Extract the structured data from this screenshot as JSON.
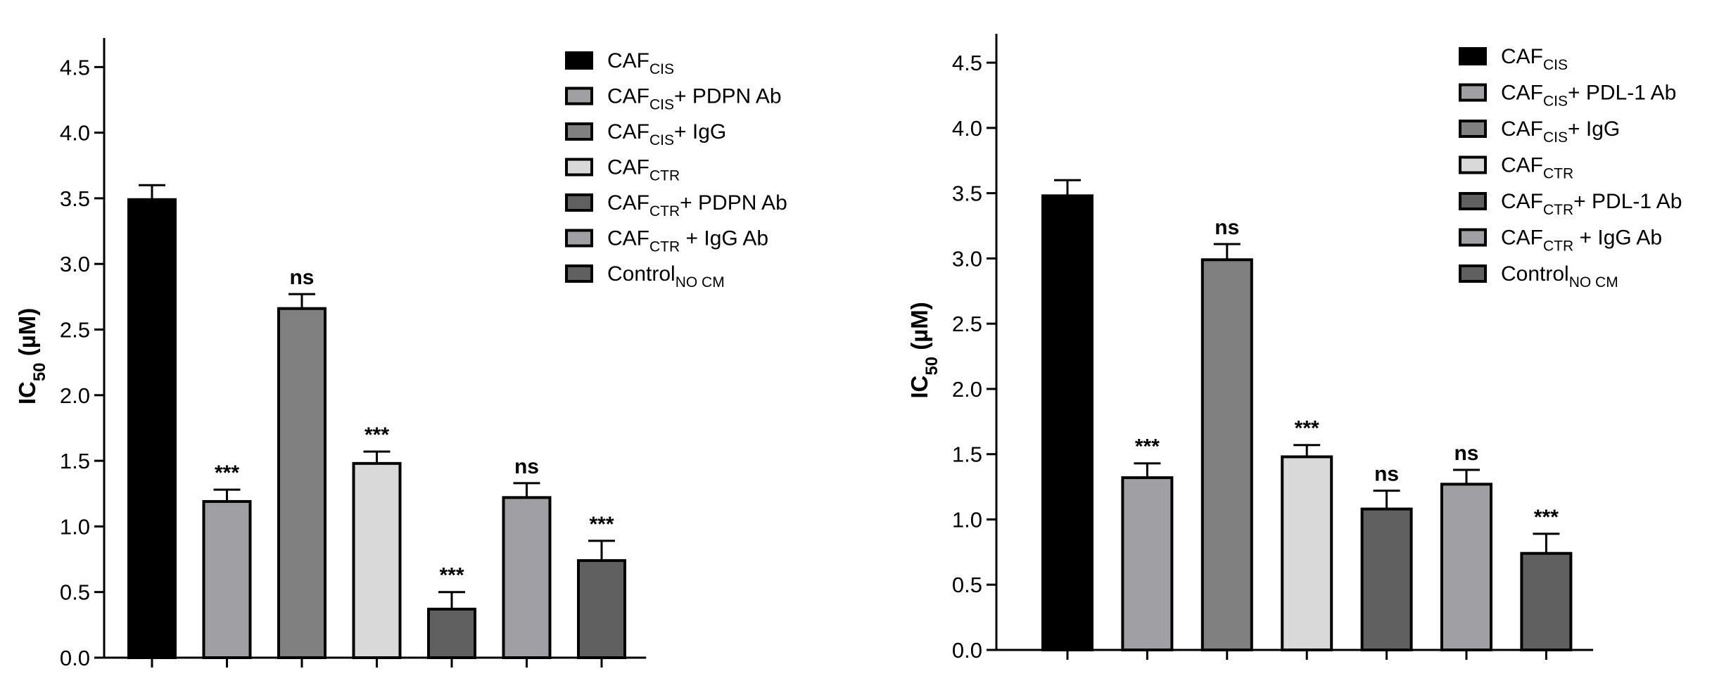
{
  "chart_data": [
    {
      "type": "bar",
      "title": "",
      "xlabel": "",
      "ylabel": {
        "main": "IC",
        "sub": "50",
        "suffix": " (µM)"
      },
      "ylim": [
        0,
        4.7
      ],
      "yticks": [
        "0.0",
        "0.5",
        "1.0",
        "1.5",
        "2.0",
        "2.5",
        "3.0",
        "3.5",
        "4.0",
        "4.5"
      ],
      "grid": false,
      "legend_position": "top-right",
      "bars": [
        {
          "legend": {
            "main": "CAF",
            "sub": "CIS",
            "suffix": ""
          },
          "value": 3.49,
          "error": 0.11,
          "color": "#000000",
          "significance": ""
        },
        {
          "legend": {
            "main": "CAF",
            "sub": "CIS",
            "suffix": "+ PDPN Ab"
          },
          "value": 1.19,
          "error": 0.09,
          "color": "#a0a0a4",
          "significance": "***"
        },
        {
          "legend": {
            "main": "CAF",
            "sub": "CIS",
            "suffix": "+ IgG"
          },
          "value": 2.66,
          "error": 0.11,
          "color": "#808080",
          "significance": "ns"
        },
        {
          "legend": {
            "main": "CAF",
            "sub": "CTR",
            "suffix": ""
          },
          "value": 1.48,
          "error": 0.09,
          "color": "#d9d9d9",
          "significance": "***"
        },
        {
          "legend": {
            "main": "CAF",
            "sub": "CTR",
            "suffix": "+ PDPN Ab"
          },
          "value": 0.37,
          "error": 0.13,
          "color": "#606060",
          "significance": "***"
        },
        {
          "legend": {
            "main": "CAF",
            "sub": "CTR",
            "suffix": " + IgG Ab"
          },
          "value": 1.22,
          "error": 0.11,
          "color": "#a0a0a4",
          "significance": "ns"
        },
        {
          "legend": {
            "main": "Control",
            "sub": "NO CM",
            "suffix": ""
          },
          "value": 0.74,
          "error": 0.15,
          "color": "#606060",
          "significance": "***"
        }
      ]
    },
    {
      "type": "bar",
      "title": "",
      "xlabel": "",
      "ylabel": {
        "main": "IC",
        "sub": "50",
        "suffix": " (µM)"
      },
      "ylim": [
        0,
        4.7
      ],
      "yticks": [
        "0.0",
        "0.5",
        "1.0",
        "1.5",
        "2.0",
        "2.5",
        "3.0",
        "3.5",
        "4.0",
        "4.5"
      ],
      "grid": false,
      "legend_position": "top-right",
      "bars": [
        {
          "legend": {
            "main": "CAF",
            "sub": "CIS",
            "suffix": ""
          },
          "value": 3.48,
          "error": 0.12,
          "color": "#000000",
          "significance": ""
        },
        {
          "legend": {
            "main": "CAF",
            "sub": "CIS",
            "suffix": "+ PDL-1 Ab"
          },
          "value": 1.32,
          "error": 0.11,
          "color": "#a0a0a4",
          "significance": "***"
        },
        {
          "legend": {
            "main": "CAF",
            "sub": "CIS",
            "suffix": "+ IgG"
          },
          "value": 2.99,
          "error": 0.12,
          "color": "#808080",
          "significance": "ns"
        },
        {
          "legend": {
            "main": "CAF",
            "sub": "CTR",
            "suffix": ""
          },
          "value": 1.48,
          "error": 0.09,
          "color": "#d9d9d9",
          "significance": "***"
        },
        {
          "legend": {
            "main": "CAF",
            "sub": "CTR",
            "suffix": "+ PDL-1 Ab"
          },
          "value": 1.08,
          "error": 0.14,
          "color": "#606060",
          "significance": "ns"
        },
        {
          "legend": {
            "main": "CAF",
            "sub": "CTR",
            "suffix": " + IgG Ab"
          },
          "value": 1.27,
          "error": 0.11,
          "color": "#a0a0a4",
          "significance": "ns"
        },
        {
          "legend": {
            "main": "Control",
            "sub": "NO CM",
            "suffix": ""
          },
          "value": 0.74,
          "error": 0.15,
          "color": "#606060",
          "significance": "***"
        }
      ]
    }
  ]
}
